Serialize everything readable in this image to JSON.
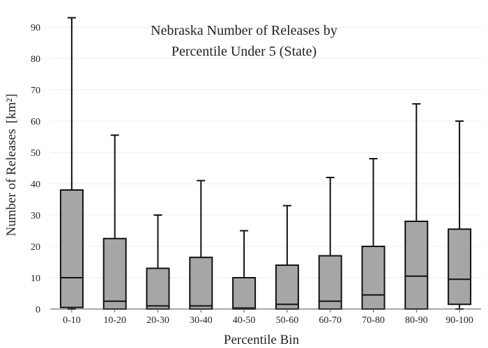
{
  "chart_data": {
    "type": "box",
    "title_lines": [
      "Nebraska Number of Releases by",
      "Percentile Under 5 (State)"
    ],
    "xlabel": "Percentile Bin",
    "ylabel": "Number of Releases",
    "ylabel_unit": "[km²]",
    "ylim": [
      0,
      95
    ],
    "yticks": [
      0,
      10,
      20,
      30,
      40,
      50,
      60,
      70,
      80,
      90
    ],
    "ytick_labels": [
      "0",
      "10",
      "20",
      "30",
      "40",
      "50",
      "60",
      "70",
      "80",
      "90"
    ],
    "categories": [
      "0-10",
      "10-20",
      "20-30",
      "30-40",
      "40-50",
      "50-60",
      "60-70",
      "70-80",
      "80-90",
      "90-100"
    ],
    "boxes": [
      {
        "min": 0,
        "q1": 0.5,
        "median": 10,
        "q3": 38,
        "max": 93
      },
      {
        "min": 0,
        "q1": 0,
        "median": 2.5,
        "q3": 22.5,
        "max": 55.5
      },
      {
        "min": 0,
        "q1": 0,
        "median": 1,
        "q3": 13,
        "max": 30
      },
      {
        "min": 0,
        "q1": 0,
        "median": 1,
        "q3": 16.5,
        "max": 41
      },
      {
        "min": 0,
        "q1": 0,
        "median": 0.3,
        "q3": 10,
        "max": 25
      },
      {
        "min": 0,
        "q1": 0,
        "median": 1.5,
        "q3": 14,
        "max": 33
      },
      {
        "min": 0,
        "q1": 0,
        "median": 2.5,
        "q3": 17,
        "max": 42
      },
      {
        "min": 0,
        "q1": 0,
        "median": 4.5,
        "q3": 20,
        "max": 48
      },
      {
        "min": 0,
        "q1": 0,
        "median": 10.5,
        "q3": 28,
        "max": 65.5
      },
      {
        "min": 0,
        "q1": 1.5,
        "median": 9.5,
        "q3": 25.5,
        "max": 60
      }
    ],
    "colors": {
      "box_fill": "#a6a6a6",
      "box_stroke": "#111111",
      "grid": "#ececec"
    }
  }
}
